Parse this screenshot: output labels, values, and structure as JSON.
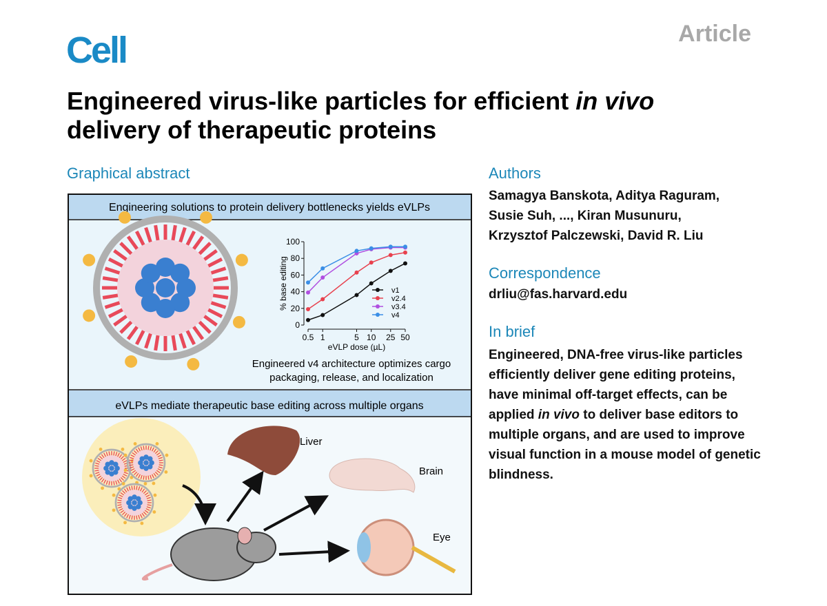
{
  "journal": "Cell",
  "article_type": "Article",
  "title": [
    "Engineered virus-like particles for efficient ",
    "in vivo",
    "delivery of therapeutic proteins"
  ],
  "graphical_abstract": {
    "heading": "Graphical abstract",
    "panel1_header": "Engineering solutions to protein delivery bottlenecks yields eVLPs",
    "panel1_caption": [
      "Engineered v4 architecture optimizes cargo",
      "packaging, release, and localization"
    ],
    "panel2_header": "eVLPs mediate therapeutic base editing across multiple organs",
    "organs": [
      "Liver",
      "Brain",
      "Eye"
    ]
  },
  "chart_data": {
    "type": "line",
    "x_label": "eVLP dose (µL)",
    "y_label": "% base editing",
    "x": [
      0.5,
      1,
      5,
      10,
      25,
      50
    ],
    "x_log": true,
    "xlim": [
      0.5,
      50
    ],
    "xticks": [
      0.5,
      1,
      5,
      10,
      25,
      50
    ],
    "ylim": [
      0,
      100
    ],
    "yticks": [
      0,
      20,
      40,
      60,
      80,
      100
    ],
    "series": [
      {
        "name": "v1",
        "color": "#111111",
        "values": [
          6,
          12,
          36,
          50,
          65,
          74
        ]
      },
      {
        "name": "v2.4",
        "color": "#e8414e",
        "values": [
          19,
          31,
          63,
          75,
          84,
          87
        ]
      },
      {
        "name": "v3.4",
        "color": "#b04fe0",
        "values": [
          39,
          57,
          86,
          91,
          93,
          93
        ]
      },
      {
        "name": "v4",
        "color": "#3a8ee6",
        "values": [
          51,
          68,
          89,
          92,
          94,
          94
        ]
      }
    ]
  },
  "authors": {
    "heading": "Authors",
    "text": "Samagya Banskota, Aditya Raguram, Susie Suh, ..., Kiran Musunuru, Krzysztof Palczewski, David R. Liu"
  },
  "correspondence": {
    "heading": "Correspondence",
    "email": "drliu@fas.harvard.edu"
  },
  "in_brief": {
    "heading": "In brief",
    "text": [
      "Engineered, DNA-free virus-like particles efficiently deliver gene editing proteins, have minimal off-target effects, can be applied ",
      "in vivo",
      " to deliver base editors to multiple organs, and are used to improve visual function in a mouse model of genetic blindness."
    ]
  }
}
